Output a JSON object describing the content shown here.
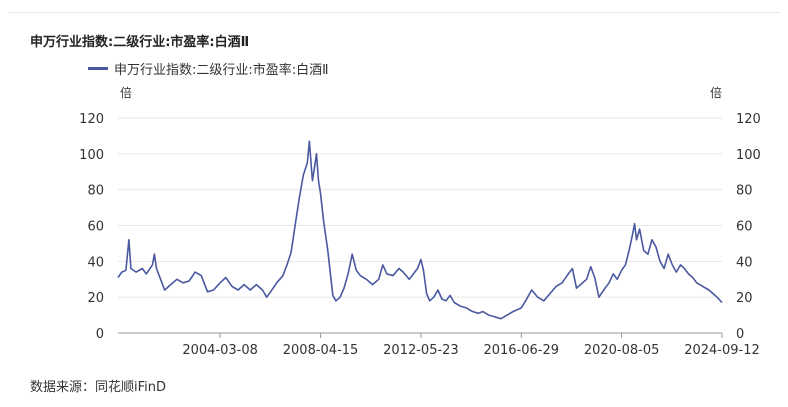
{
  "title": "申万行业指数:二级行业:市盈率:白酒Ⅱ",
  "source": "数据来源：同花顺iFinD",
  "colors": {
    "line": "#4a58a0",
    "grid": "#e6e6e6",
    "axis": "#999999"
  },
  "chart_data": {
    "type": "line",
    "title": "申万行业指数:二级行业:市盈率:白酒Ⅱ",
    "ylabel_left": "倍",
    "ylabel_right": "倍",
    "ylim": [
      0,
      120
    ],
    "yticks": [
      0,
      20,
      40,
      60,
      80,
      100,
      120
    ],
    "xlim": [
      "2000-01-04",
      "2024-09-12"
    ],
    "xtick_labels": [
      "2004-03-08",
      "2008-04-15",
      "2012-05-23",
      "2016-06-29",
      "2020-08-05",
      "2024-09-12"
    ],
    "legend_position": "top-left",
    "grid": true,
    "series": [
      {
        "name": "申万行业指数:二级行业:市盈率:白酒Ⅱ",
        "color": "#4a58a0",
        "points": [
          [
            "2000-01-04",
            31
          ],
          [
            "2000-03-01",
            34
          ],
          [
            "2000-05-01",
            35
          ],
          [
            "2000-06-15",
            52
          ],
          [
            "2000-07-15",
            36
          ],
          [
            "2000-10-01",
            34
          ],
          [
            "2001-01-01",
            36
          ],
          [
            "2001-03-01",
            33
          ],
          [
            "2001-06-01",
            38
          ],
          [
            "2001-07-01",
            44
          ],
          [
            "2001-08-01",
            36
          ],
          [
            "2001-10-01",
            30
          ],
          [
            "2001-12-01",
            24
          ],
          [
            "2002-03-01",
            27
          ],
          [
            "2002-06-01",
            30
          ],
          [
            "2002-09-01",
            28
          ],
          [
            "2002-12-01",
            29
          ],
          [
            "2003-03-01",
            34
          ],
          [
            "2003-06-01",
            32
          ],
          [
            "2003-09-01",
            23
          ],
          [
            "2003-12-01",
            24
          ],
          [
            "2004-03-08",
            28
          ],
          [
            "2004-06-01",
            31
          ],
          [
            "2004-09-01",
            26
          ],
          [
            "2004-12-01",
            24
          ],
          [
            "2005-03-01",
            27
          ],
          [
            "2005-06-01",
            24
          ],
          [
            "2005-09-01",
            27
          ],
          [
            "2005-12-01",
            24
          ],
          [
            "2006-02-01",
            20
          ],
          [
            "2006-04-01",
            23
          ],
          [
            "2006-07-01",
            28
          ],
          [
            "2006-10-01",
            32
          ],
          [
            "2006-12-01",
            38
          ],
          [
            "2007-02-01",
            45
          ],
          [
            "2007-04-01",
            60
          ],
          [
            "2007-06-01",
            75
          ],
          [
            "2007-08-01",
            88
          ],
          [
            "2007-10-01",
            95
          ],
          [
            "2007-11-01",
            107
          ],
          [
            "2007-12-15",
            85
          ],
          [
            "2008-01-15",
            92
          ],
          [
            "2008-02-15",
            100
          ],
          [
            "2008-03-15",
            85
          ],
          [
            "2008-04-15",
            78
          ],
          [
            "2008-06-01",
            62
          ],
          [
            "2008-08-01",
            46
          ],
          [
            "2008-09-01",
            36
          ],
          [
            "2008-10-15",
            21
          ],
          [
            "2008-12-01",
            18
          ],
          [
            "2009-02-01",
            20
          ],
          [
            "2009-04-01",
            25
          ],
          [
            "2009-06-01",
            33
          ],
          [
            "2009-08-01",
            44
          ],
          [
            "2009-10-01",
            35
          ],
          [
            "2009-12-01",
            32
          ],
          [
            "2010-03-01",
            30
          ],
          [
            "2010-06-01",
            27
          ],
          [
            "2010-09-01",
            30
          ],
          [
            "2010-11-01",
            38
          ],
          [
            "2011-01-01",
            33
          ],
          [
            "2011-04-01",
            32
          ],
          [
            "2011-07-01",
            36
          ],
          [
            "2011-09-01",
            34
          ],
          [
            "2011-12-01",
            30
          ],
          [
            "2012-02-01",
            33
          ],
          [
            "2012-04-01",
            36
          ],
          [
            "2012-05-23",
            41
          ],
          [
            "2012-07-01",
            35
          ],
          [
            "2012-08-15",
            22
          ],
          [
            "2012-10-01",
            18
          ],
          [
            "2012-12-01",
            20
          ],
          [
            "2013-02-01",
            24
          ],
          [
            "2013-04-01",
            19
          ],
          [
            "2013-06-01",
            18
          ],
          [
            "2013-08-01",
            21
          ],
          [
            "2013-10-01",
            17
          ],
          [
            "2014-01-01",
            15
          ],
          [
            "2014-04-01",
            14
          ],
          [
            "2014-07-01",
            12
          ],
          [
            "2014-10-01",
            11
          ],
          [
            "2014-12-01",
            12
          ],
          [
            "2015-03-01",
            10
          ],
          [
            "2015-06-01",
            9
          ],
          [
            "2015-09-01",
            8
          ],
          [
            "2015-12-01",
            10
          ],
          [
            "2016-03-01",
            12
          ],
          [
            "2016-06-29",
            14
          ],
          [
            "2016-09-01",
            18
          ],
          [
            "2016-12-01",
            24
          ],
          [
            "2017-03-01",
            20
          ],
          [
            "2017-06-01",
            18
          ],
          [
            "2017-09-01",
            22
          ],
          [
            "2017-12-01",
            26
          ],
          [
            "2018-03-01",
            28
          ],
          [
            "2018-06-01",
            33
          ],
          [
            "2018-08-01",
            36
          ],
          [
            "2018-10-01",
            25
          ],
          [
            "2018-12-01",
            27
          ],
          [
            "2019-03-01",
            30
          ],
          [
            "2019-05-01",
            37
          ],
          [
            "2019-07-01",
            31
          ],
          [
            "2019-09-01",
            20
          ],
          [
            "2019-12-01",
            25
          ],
          [
            "2020-02-01",
            28
          ],
          [
            "2020-04-01",
            33
          ],
          [
            "2020-06-01",
            30
          ],
          [
            "2020-08-05",
            35
          ],
          [
            "2020-10-01",
            38
          ],
          [
            "2020-12-01",
            47
          ],
          [
            "2021-01-15",
            55
          ],
          [
            "2021-02-15",
            61
          ],
          [
            "2021-03-15",
            52
          ],
          [
            "2021-05-01",
            58
          ],
          [
            "2021-07-01",
            46
          ],
          [
            "2021-09-01",
            44
          ],
          [
            "2021-11-01",
            52
          ],
          [
            "2022-01-01",
            48
          ],
          [
            "2022-03-01",
            40
          ],
          [
            "2022-05-01",
            36
          ],
          [
            "2022-07-01",
            44
          ],
          [
            "2022-09-01",
            38
          ],
          [
            "2022-11-01",
            34
          ],
          [
            "2023-01-01",
            38
          ],
          [
            "2023-03-01",
            36
          ],
          [
            "2023-05-01",
            33
          ],
          [
            "2023-07-01",
            31
          ],
          [
            "2023-09-01",
            28
          ],
          [
            "2023-12-01",
            26
          ],
          [
            "2024-03-01",
            24
          ],
          [
            "2024-05-01",
            22
          ],
          [
            "2024-07-01",
            20
          ],
          [
            "2024-09-12",
            17
          ]
        ]
      }
    ]
  }
}
